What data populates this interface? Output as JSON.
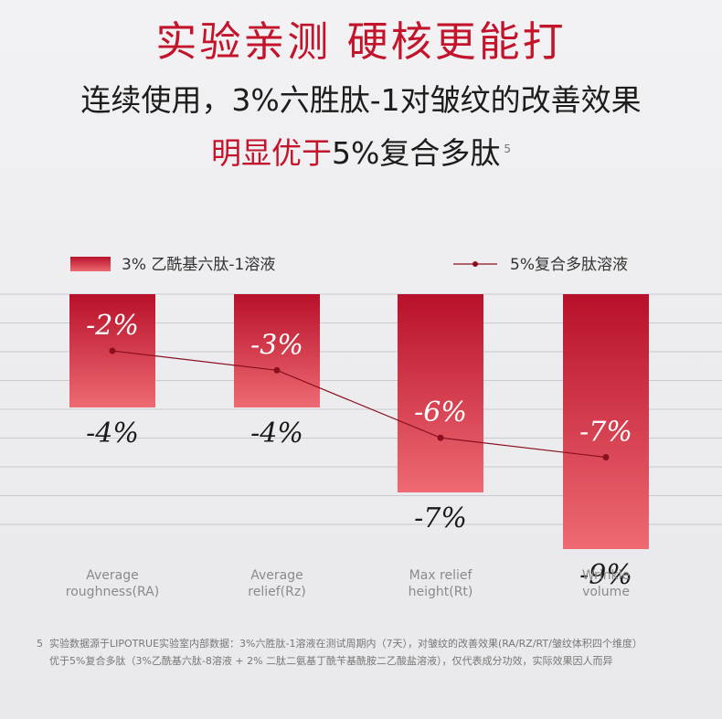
{
  "header": {
    "title": "实验亲测 硬核更能打",
    "subtitle_line1": "连续使用，3%六胜肽-1对皱纹的改善效果",
    "subtitle_line2_red": "明显优于",
    "subtitle_line2_rest": "5%复合多肽",
    "subtitle_sup": "5"
  },
  "chart_data": {
    "type": "bar",
    "categories": [
      "Average\nroughness(RA)",
      "Average\nrelief(Rz)",
      "Max relief\nheight(Rt)",
      "Wrinkle\nvolume"
    ],
    "series": [
      {
        "name": "3% 乙酰基六肽-1溶液",
        "type": "bar",
        "values": [
          -4,
          -4,
          -7,
          -9
        ],
        "labels": [
          "-4%",
          "-4%",
          "-7%",
          "-9%"
        ]
      },
      {
        "name": "5%复合多肽溶液",
        "type": "line",
        "values": [
          -2,
          -3,
          -6,
          -7
        ],
        "labels": [
          "-2%",
          "-3%",
          "-6%",
          "-7%"
        ]
      }
    ],
    "ylim": [
      -10,
      0
    ],
    "grid": true,
    "legend": "top",
    "colors": {
      "bar_top": "#b8102a",
      "bar_bottom": "#ee6a72",
      "line": "#8a1020"
    }
  },
  "footnote": {
    "number": "5",
    "line1": "实验数据源于LIPOTRUE实验室内部数据：3%六胜肽-1溶液在测试周期内（7天），对皱纹的改善效果(RA/RZ/RT/皱纹体积四个维度）",
    "line2": "优于5%复合多肽（3%乙酰基六肽-8溶液 + 2% 二肽二氨基丁酰苄基酰胺二乙酸盐溶液），仅代表成分功效，实际效果因人而异"
  }
}
